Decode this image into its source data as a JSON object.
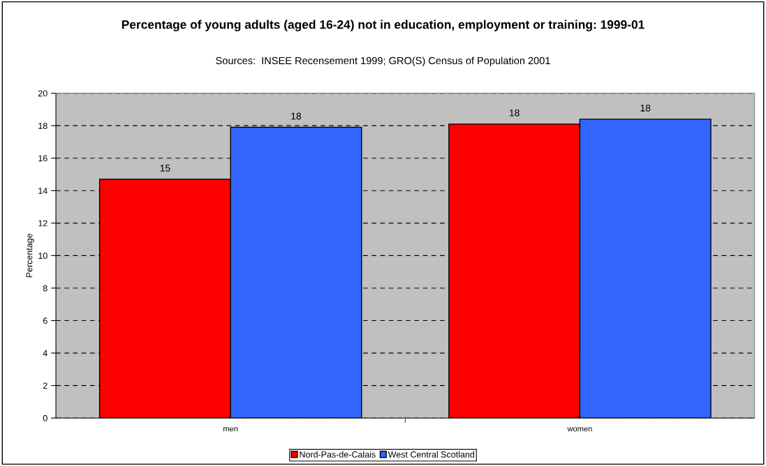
{
  "chart_data": {
    "type": "bar",
    "title": "Percentage of young adults (aged 16-24) not in education, employment or training: 1999-01",
    "subtitle": "Sources:  INSEE Recensement 1999; GRO(S) Census of Population 2001",
    "ylabel": "Percentage",
    "categories": [
      "men",
      "women"
    ],
    "series": [
      {
        "name": "Nord-Pas-de-Calais",
        "color": "#ff0000",
        "values": [
          14.7,
          18.1
        ],
        "value_labels": [
          "15",
          "18"
        ]
      },
      {
        "name": "West Central Scotland",
        "color": "#3366ff",
        "values": [
          17.9,
          18.4
        ],
        "value_labels": [
          "18",
          "18"
        ]
      }
    ],
    "ylim": [
      0,
      20
    ],
    "yticks": [
      0,
      2,
      4,
      6,
      8,
      10,
      12,
      14,
      16,
      18,
      20
    ],
    "grid": "y",
    "legend": "bottom"
  }
}
